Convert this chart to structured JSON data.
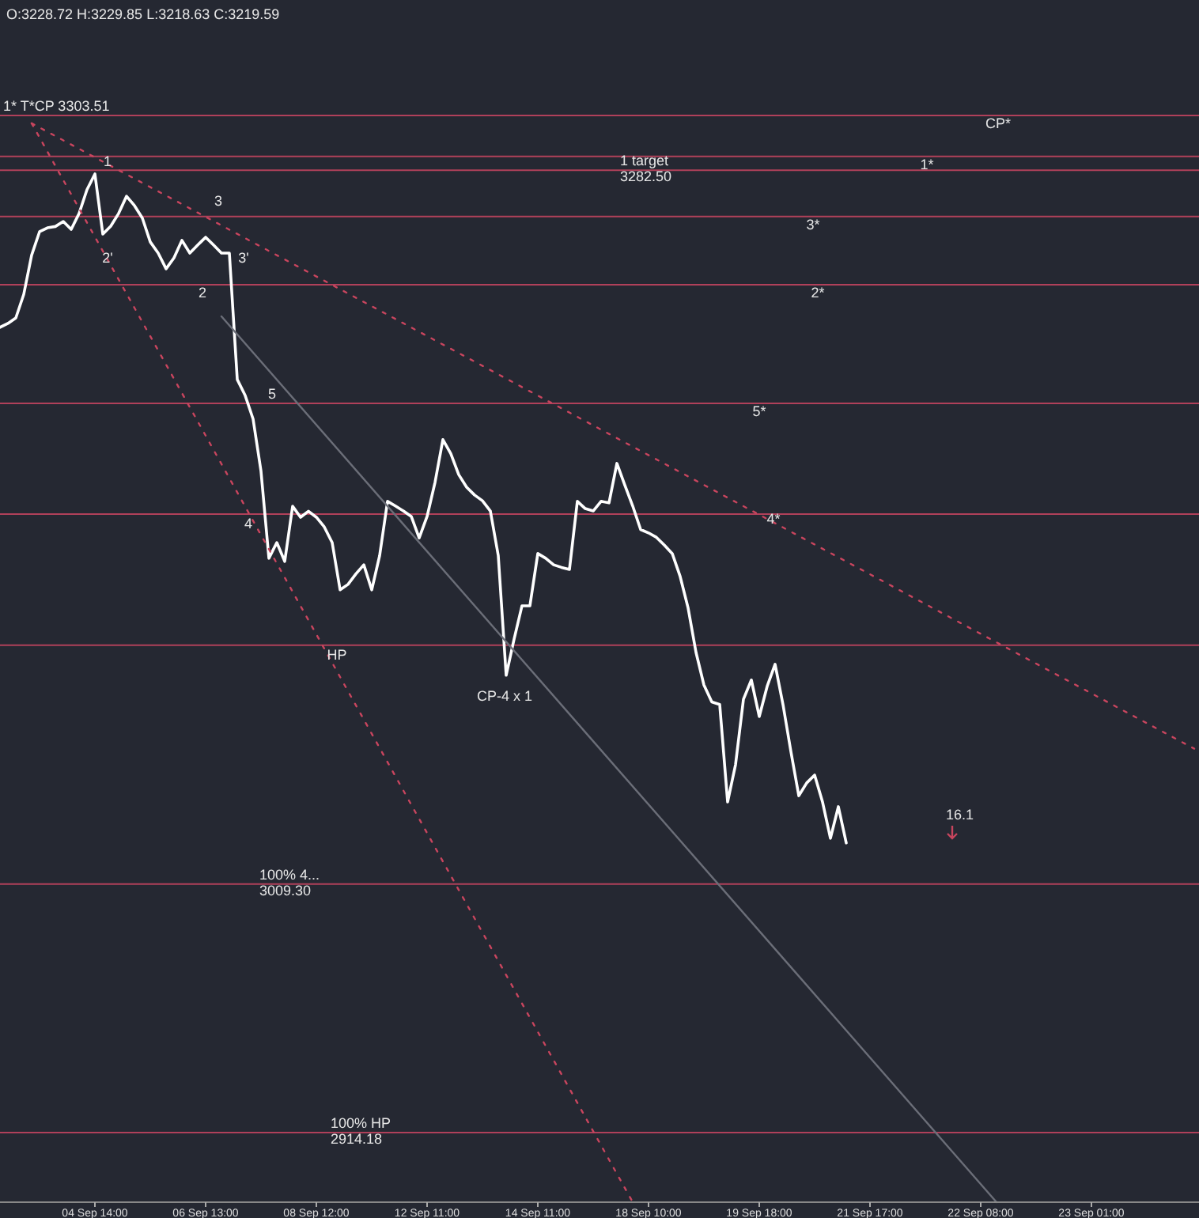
{
  "chart_data": {
    "type": "line",
    "tick_labels": "x",
    "grid": false,
    "ylim": [
      2887.5,
      3347.7
    ],
    "categories": [
      null,
      null,
      null,
      null,
      null,
      null,
      null,
      null,
      null,
      null,
      null,
      null,
      "04 Sep 14:00",
      null,
      null,
      null,
      null,
      null,
      null,
      null,
      null,
      null,
      null,
      null,
      null,
      null,
      "06 Sep 13:00",
      null,
      null,
      null,
      null,
      null,
      null,
      null,
      null,
      null,
      null,
      null,
      null,
      null,
      "08 Sep 12:00",
      null,
      null,
      null,
      null,
      null,
      null,
      null,
      null,
      null,
      null,
      null,
      null,
      null,
      "12 Sep 11:00",
      null,
      null,
      null,
      null,
      null,
      null,
      null,
      null,
      null,
      null,
      null,
      null,
      null,
      "14 Sep 11:00",
      null,
      null,
      null,
      null,
      null,
      null,
      null,
      null,
      null,
      null,
      null,
      null,
      null,
      "18 Sep 10:00",
      null,
      null,
      null,
      null,
      null,
      null,
      null,
      null,
      null,
      null,
      null,
      null,
      null,
      "19 Sep 18:00",
      null,
      null,
      null,
      null,
      null,
      null,
      null,
      null,
      null,
      null,
      null,
      null,
      null,
      "21 Sep 17:00",
      null,
      null,
      null,
      null,
      null,
      null,
      null,
      null,
      null,
      null,
      null,
      null,
      null,
      "22 Sep 08:00",
      null,
      null,
      null,
      null,
      null,
      null,
      null,
      null,
      null,
      null,
      null,
      null,
      null,
      "23 Sep 01:00",
      null,
      null,
      null,
      null,
      null,
      null,
      null,
      null,
      null,
      null,
      null,
      null,
      null
    ],
    "series": [
      {
        "color": "#ffffff",
        "line_style": "solid",
        "values": [
          3222.4,
          3223.9,
          3226,
          3235,
          3250,
          3259,
          3260.5,
          3261,
          3262.9,
          3259.9,
          3266.0,
          3275.1,
          3281.1,
          3258.1,
          3261.1,
          3266.0,
          3272.6,
          3269.0,
          3264.2,
          3255.1,
          3250.8,
          3244.8,
          3249.0,
          3255.7,
          3250.8,
          3253.9,
          3256.9,
          3253.9,
          3250.8,
          3250.8,
          3202.4,
          3196.3,
          3187.3,
          3167.3,
          3134.0,
          3140.0,
          3132.8,
          3153.9,
          3149.7,
          3152,
          3149.7,
          3146,
          3140.0,
          3121.9,
          3124,
          3128,
          3131.5,
          3121.9,
          3135,
          3155.8,
          3154,
          3152.1,
          3150,
          3141.8,
          3150,
          3163,
          3179.4,
          3174,
          3166,
          3161.2,
          3158.2,
          3156,
          3152.1,
          3135,
          3089.2,
          3103,
          3115.8,
          3115.8,
          3135.8,
          3134,
          3131.5,
          3130.5,
          3129.7,
          3155.8,
          3153,
          3152.1,
          3155.8,
          3155.2,
          3170.3,
          3162,
          3154,
          3145,
          3143.7,
          3142,
          3139,
          3135.8,
          3127,
          3115,
          3098,
          3085.5,
          3079,
          3078,
          3040.7,
          3055,
          3080,
          3087.4,
          3073.4,
          3085,
          3093.4,
          3078,
          3060,
          3043.1,
          3048,
          3051.0,
          3040.7,
          3026.8,
          3038.9,
          3025.0,
          null,
          null,
          null,
          null,
          null,
          null,
          null,
          null,
          null,
          null,
          null,
          null,
          null,
          null,
          null,
          null,
          null,
          null,
          null,
          null,
          null,
          null,
          null,
          null,
          null,
          null,
          null,
          null,
          null,
          null,
          null,
          null,
          null,
          null,
          null,
          null,
          null,
          null,
          null,
          null,
          null,
          null,
          null,
          null
        ]
      },
      {
        "type": "line",
        "color": "#c8455e",
        "line_style": "dotted",
        "values": [
          null,
          null,
          null,
          null,
          3300.5,
          null,
          null,
          null,
          null,
          null,
          null,
          null,
          null,
          null,
          null,
          null,
          null,
          null,
          null,
          null,
          null,
          null,
          null,
          null,
          null,
          null,
          null,
          null,
          null,
          null,
          null,
          null,
          null,
          null,
          null,
          null,
          null,
          null,
          null,
          null,
          null,
          null,
          null,
          null,
          null,
          null,
          null,
          null,
          null,
          null,
          null,
          null,
          null,
          null,
          null,
          null,
          null,
          null,
          null,
          null,
          null,
          null,
          null,
          null,
          null,
          null,
          null,
          null,
          null,
          null,
          null,
          null,
          null,
          null,
          null,
          null,
          null,
          null,
          null,
          null,
          null,
          null,
          null,
          null,
          null,
          null,
          null,
          null,
          null,
          null,
          null,
          null,
          null,
          null,
          null,
          null,
          null,
          null,
          null,
          null,
          null,
          null,
          null,
          null,
          null,
          null,
          null,
          null,
          null,
          null,
          null,
          null,
          null,
          null,
          null,
          null,
          null,
          null,
          null,
          null,
          null,
          null,
          null,
          null,
          null,
          null,
          null,
          null,
          null,
          null,
          null,
          null,
          null,
          null,
          null,
          null,
          null,
          null,
          null,
          null,
          null,
          null,
          null,
          null,
          null,
          null,
          null,
          null,
          null,
          null,
          null,
          3061.1
        ]
      },
      {
        "type": "line",
        "color": "#c8455e",
        "line_style": "dotted",
        "values": [
          null,
          null,
          null,
          null,
          3300.5,
          null,
          null,
          null,
          null,
          null,
          null,
          null,
          null,
          null,
          null,
          null,
          null,
          null,
          null,
          null,
          null,
          null,
          null,
          null,
          null,
          null,
          null,
          null,
          null,
          null,
          null,
          null,
          null,
          null,
          null,
          null,
          null,
          null,
          null,
          null,
          null,
          null,
          null,
          null,
          null,
          null,
          null,
          null,
          null,
          null,
          null,
          null,
          null,
          null,
          null,
          null,
          null,
          null,
          null,
          null,
          null,
          null,
          null,
          null,
          null,
          null,
          null,
          null,
          null,
          null,
          null,
          null,
          null,
          null,
          null,
          null,
          null,
          null,
          null,
          null,
          2887.5,
          null,
          null,
          null,
          null,
          null,
          null,
          null,
          null,
          null,
          null,
          null,
          null,
          null,
          null,
          null,
          null,
          null,
          null,
          null,
          null,
          null,
          null,
          null,
          null,
          null,
          null,
          null,
          null,
          null,
          null,
          null,
          null,
          null,
          null,
          null,
          null,
          null,
          null,
          null,
          null,
          null,
          null,
          null,
          null,
          null,
          null,
          null,
          null,
          null,
          null,
          null,
          null,
          null,
          null,
          null,
          null,
          null,
          null,
          null,
          null,
          null,
          null,
          null,
          null,
          null,
          null,
          null,
          null,
          null,
          null,
          null
        ]
      },
      {
        "type": "line",
        "color": "#6b6e78",
        "line_style": "solid",
        "values": [
          null,
          null,
          null,
          null,
          null,
          null,
          null,
          null,
          null,
          null,
          null,
          null,
          null,
          null,
          null,
          null,
          null,
          null,
          null,
          null,
          null,
          null,
          null,
          null,
          null,
          null,
          null,
          null,
          3226.6,
          null,
          null,
          null,
          null,
          null,
          null,
          null,
          null,
          null,
          null,
          null,
          null,
          null,
          null,
          null,
          null,
          null,
          null,
          null,
          null,
          null,
          null,
          null,
          null,
          null,
          null,
          null,
          null,
          null,
          null,
          null,
          null,
          null,
          null,
          null,
          null,
          null,
          null,
          null,
          null,
          null,
          null,
          null,
          null,
          null,
          null,
          null,
          null,
          null,
          null,
          null,
          null,
          null,
          null,
          null,
          null,
          null,
          null,
          null,
          null,
          null,
          null,
          null,
          null,
          null,
          null,
          null,
          null,
          null,
          null,
          null,
          null,
          null,
          null,
          null,
          null,
          null,
          null,
          null,
          null,
          null,
          null,
          null,
          null,
          null,
          null,
          null,
          null,
          null,
          null,
          null,
          null,
          null,
          null,
          null,
          null,
          null,
          2887.5,
          null,
          null,
          null,
          null,
          null,
          null,
          null,
          null,
          null,
          null,
          null,
          null,
          null,
          null,
          null,
          null,
          null,
          null,
          null,
          null,
          null,
          null,
          null,
          null,
          null
        ]
      }
    ],
    "ref_lines": [
      {
        "axis": "y",
        "value": 3303.51,
        "label": "1* T*CP  3303.51",
        "color": "#b0405a"
      },
      {
        "axis": "y",
        "value": 3287.8,
        "label": null,
        "color": "#b0405a"
      },
      {
        "axis": "y",
        "value": 3282.5,
        "label": "1 target\n3282.50",
        "color": "#b0405a"
      },
      {
        "axis": "y",
        "value": 3264.8,
        "label": null,
        "color": "#b0405a"
      },
      {
        "axis": "y",
        "value": 3238.7,
        "label": null,
        "color": "#b0405a"
      },
      {
        "axis": "y",
        "value": 3193.3,
        "label": null,
        "color": "#b0405a"
      },
      {
        "axis": "y",
        "value": 3150.9,
        "label": null,
        "color": "#b0405a"
      },
      {
        "axis": "y",
        "value": 3100.7,
        "label": null,
        "color": "#b0405a"
      },
      {
        "axis": "y",
        "value": 3009.3,
        "label": "100%  4...\n3009.30",
        "color": "#b0405a"
      },
      {
        "axis": "y",
        "value": 2914.18,
        "label": "100% HP\n2914.18",
        "color": "#b0405a"
      }
    ],
    "annotations": [
      "O:3228.72 H:3229.85 L:3218.63 C:3219.59",
      {
        "text": "CP*",
        "y": 3303.51
      },
      {
        "text": "1*",
        "y": 3287.8
      },
      {
        "text": "3*",
        "y": 3264.8
      },
      {
        "text": "2*",
        "y": 3238.7
      },
      {
        "text": "5*",
        "y": 3193.3
      },
      {
        "text": "4*",
        "y": 3150.9
      },
      {
        "text": "1",
        "y": 3281.1
      },
      {
        "text": "2'",
        "y": 3258.1
      },
      {
        "text": "3",
        "y": 3266.0
      },
      {
        "text": "3'",
        "y": 3257.0
      },
      {
        "text": "2",
        "y": 3238.7
      },
      {
        "text": "5",
        "y": 3193.3
      },
      {
        "text": "4",
        "y": 3150.9
      },
      {
        "text": "HP",
        "y": 3100.7
      },
      {
        "text": "CP-4 x 1",
        "y": 3089.2
      },
      "16.1"
    ]
  }
}
